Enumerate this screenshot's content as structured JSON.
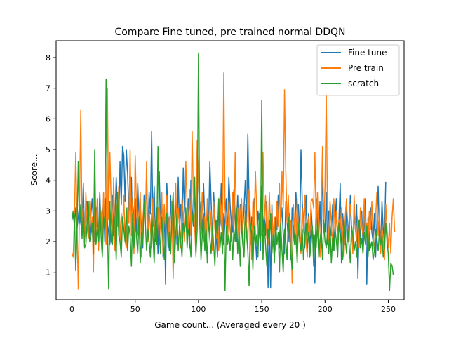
{
  "chart_data": {
    "type": "line",
    "title": "Compare Fine tuned, pre trained normal DDQN",
    "xlabel": "Game count... (Averaged every 20 )",
    "ylabel": "Score...",
    "xlim": [
      -12.5,
      262.5
    ],
    "ylim": [
      0.1,
      8.55
    ],
    "xticks": [
      0,
      50,
      100,
      150,
      200,
      250
    ],
    "yticks": [
      1,
      2,
      3,
      4,
      5,
      6,
      7,
      8
    ],
    "grid": false,
    "legend_position": "top-right",
    "series": [
      {
        "name": "Fine tune",
        "color": "#1f77b4",
        "values": [
          2.7,
          2.9,
          2.5,
          3.1,
          2.4,
          2.8,
          3.2,
          2.6,
          2.3,
          3.9,
          2.0,
          2.7,
          3.3,
          2.4,
          2.1,
          2.9,
          3.4,
          2.6,
          2.0,
          3.1,
          2.5,
          2.2,
          3.6,
          2.4,
          2.9,
          3.2,
          2.0,
          3.4,
          2.6,
          2.3,
          1.9,
          2.8,
          3.5,
          2.2,
          2.7,
          4.1,
          3.0,
          2.4,
          4.6,
          3.2,
          5.1,
          4.8,
          3.3,
          5.0,
          4.2,
          2.9,
          3.6,
          4.1,
          2.2,
          3.0,
          3.4,
          2.1,
          3.9,
          2.8,
          3.2,
          2.4,
          1.8,
          3.5,
          2.7,
          4.2,
          2.1,
          3.6,
          2.9,
          5.6,
          2.5,
          3.8,
          2.0,
          3.1,
          1.6,
          4.3,
          2.6,
          3.4,
          1.5,
          3.2,
          0.6,
          3.9,
          2.8,
          1.7,
          3.5,
          2.4,
          3.1,
          2.2,
          3.6,
          1.9,
          4.1,
          2.5,
          3.2,
          2.1,
          4.4,
          3.0,
          2.6,
          2.2,
          3.4,
          1.8,
          4.0,
          3.1,
          2.5,
          3.7,
          2.3,
          5.0,
          4.1,
          2.8,
          3.3,
          2.1,
          3.9,
          2.7,
          1.6,
          3.1,
          2.4,
          4.6,
          3.3,
          2.0,
          3.6,
          2.8,
          2.2,
          1.5,
          3.2,
          2.5,
          3.9,
          2.3,
          1.9,
          2.7,
          3.4,
          2.1,
          4.1,
          3.2,
          2.6,
          2.3,
          3.7,
          2.8,
          2.0,
          3.5,
          1.8,
          3.2,
          2.9,
          2.4,
          3.1,
          4.0,
          2.6,
          5.5,
          3.3,
          1.9,
          2.8,
          2.4,
          3.4,
          2.1,
          1.4,
          3.0,
          2.6,
          1.7,
          3.8,
          2.3,
          2.9,
          2.2,
          3.3,
          0.5,
          2.7,
          0.5,
          3.2,
          2.0,
          1.5,
          2.8,
          2.4,
          3.5,
          1.8,
          2.6,
          3.1,
          2.2,
          1.6,
          3.3,
          2.7,
          2.0,
          2.9,
          1.4,
          3.1,
          2.5,
          1.9,
          3.6,
          2.8,
          3.2,
          2.1,
          5.0,
          3.3,
          2.6,
          1.8,
          3.5,
          2.2,
          2.9,
          1.6,
          3.1,
          2.4,
          2.0,
          0.65,
          3.4,
          2.6,
          2.1,
          3.3,
          1.8,
          4.4,
          2.7,
          2.3,
          3.6,
          1.9,
          3.0,
          2.5,
          2.2,
          3.2,
          1.7,
          2.8,
          3.4,
          2.0,
          2.7,
          3.9,
          1.3,
          2.9,
          2.3,
          1.9,
          3.1,
          2.6,
          2.0,
          3.5,
          2.2,
          1.8,
          2.9,
          2.4,
          3.2,
          0.8,
          2.7,
          2.1,
          3.0,
          1.9,
          2.5,
          3.4,
          0.6,
          2.8,
          1.7,
          3.1,
          2.3,
          2.0,
          2.9,
          1.5,
          2.6,
          3.8,
          2.2,
          1.8,
          3.3,
          2.4,
          2.0,
          3.95
        ]
      },
      {
        "name": "Pre train",
        "color": "#ff7f0e",
        "values": [
          1.6,
          1.5,
          2.8,
          4.9,
          2.6,
          0.45,
          3.2,
          6.3,
          2.4,
          3.1,
          2.0,
          3.6,
          2.5,
          2.1,
          3.3,
          2.4,
          2.8,
          1.0,
          3.9,
          2.2,
          3.4,
          1.7,
          2.6,
          3.0,
          2.1,
          3.6,
          2.4,
          1.9,
          7.0,
          2.7,
          4.9,
          3.3,
          2.1,
          4.1,
          1.7,
          3.2,
          2.5,
          3.8,
          2.0,
          2.9,
          2.4,
          3.5,
          2.0,
          1.8,
          3.1,
          2.6,
          5.0,
          2.2,
          3.4,
          1.6,
          4.8,
          3.1,
          2.2,
          2.9,
          3.6,
          1.5,
          2.7,
          3.3,
          2.3,
          4.6,
          2.0,
          3.0,
          2.5,
          1.8,
          3.4,
          2.2,
          2.8,
          2.4,
          3.1,
          1.9,
          2.7,
          3.6,
          1.6,
          3.2,
          2.4,
          3.5,
          2.1,
          2.8,
          1.6,
          3.3,
          0.8,
          2.6,
          3.9,
          2.2,
          3.1,
          2.5,
          1.8,
          3.4,
          2.9,
          2.0,
          4.6,
          3.2,
          2.4,
          3.7,
          2.2,
          5.6,
          3.3,
          2.5,
          1.5,
          5.3,
          4.0,
          3.1,
          2.4,
          3.6,
          2.0,
          2.8,
          1.9,
          3.4,
          2.6,
          2.2,
          3.0,
          1.7,
          3.3,
          2.4,
          2.1,
          2.8,
          1.7,
          3.5,
          2.6,
          2.2,
          7.5,
          3.1,
          2.5,
          1.9,
          3.3,
          2.4,
          2.0,
          3.6,
          2.2,
          4.9,
          2.6,
          3.1,
          1.8,
          2.9,
          3.4,
          2.2,
          1.6,
          3.2,
          2.5,
          2.0,
          3.7,
          2.8,
          1.4,
          3.3,
          2.5,
          4.3,
          3.0,
          1.8,
          2.6,
          3.4,
          2.2,
          4.9,
          2.7,
          3.5,
          2.1,
          1.9,
          3.6,
          2.4,
          3.0,
          2.0,
          2.8,
          1.7,
          3.3,
          2.5,
          3.9,
          2.2,
          4.3,
          3.1,
          6.95,
          4.3,
          2.6,
          3.5,
          2.0,
          2.7,
          0.65,
          3.2,
          2.4,
          1.9,
          3.4,
          2.2,
          2.6,
          1.6,
          3.1,
          2.3,
          3.5,
          2.0,
          1.5,
          2.8,
          2.2,
          3.3,
          3.4,
          3.1,
          4.9,
          2.5,
          3.6,
          2.2,
          1.5,
          2.9,
          5.1,
          2.4,
          3.8,
          6.8,
          2.7,
          2.0,
          3.3,
          2.6,
          1.8,
          3.4,
          2.2,
          3.0,
          1.9,
          2.7,
          2.4,
          3.1,
          2.2,
          1.5,
          2.8,
          3.4,
          2.0,
          2.5,
          3.2,
          2.6,
          1.6,
          3.5,
          2.4,
          2.0,
          2.8,
          1.8,
          3.1,
          2.6,
          2.2,
          3.4,
          2.0,
          2.6,
          1.9,
          3.0,
          2.4,
          3.3,
          2.1,
          1.7,
          2.8,
          3.6,
          2.2,
          3.0,
          1.6,
          2.5,
          2.0,
          1.4,
          3.2,
          2.4,
          1.8,
          2.6,
          1.6,
          2.8,
          3.4,
          2.3
        ]
      },
      {
        "name": "scratch",
        "color": "#2ca02c",
        "values": [
          2.7,
          3.0,
          2.9,
          1.05,
          2.4,
          4.6,
          2.6,
          3.2,
          2.1,
          3.0,
          1.8,
          1.9,
          2.6,
          3.3,
          2.0,
          2.2,
          2.6,
          1.6,
          5.0,
          1.9,
          2.4,
          2.0,
          3.3,
          2.2,
          1.5,
          2.8,
          2.4,
          7.3,
          2.7,
          0.45,
          3.3,
          2.0,
          1.9,
          2.9,
          2.6,
          1.4,
          3.6,
          2.2,
          2.0,
          1.5,
          2.8,
          2.4,
          2.0,
          3.1,
          1.7,
          2.5,
          2.2,
          1.2,
          2.9,
          1.8,
          2.6,
          2.2,
          1.6,
          2.8,
          1.3,
          2.3,
          1.9,
          3.3,
          2.6,
          1.7,
          2.4,
          2.0,
          1.5,
          2.9,
          2.2,
          1.3,
          2.7,
          1.9,
          5.1,
          2.4,
          1.6,
          2.8,
          2.1,
          1.4,
          2.5,
          2.9,
          1.8,
          2.3,
          1.6,
          2.8,
          3.6,
          1.3,
          2.2,
          2.9,
          1.7,
          2.5,
          2.0,
          1.5,
          2.6,
          2.3,
          3.1,
          1.8,
          2.4,
          2.1,
          1.5,
          2.9,
          2.6,
          4.1,
          1.6,
          2.4,
          8.15,
          2.6,
          1.4,
          2.2,
          2.9,
          1.7,
          2.4,
          1.3,
          2.8,
          2.1,
          1.6,
          2.5,
          1.9,
          1.2,
          2.7,
          2.2,
          3.4,
          1.8,
          2.3,
          1.6,
          2.9,
          0.4,
          2.5,
          1.9,
          2.2,
          1.7,
          2.6,
          1.4,
          2.4,
          2.0,
          3.1,
          1.6,
          2.3,
          1.2,
          2.7,
          1.9,
          1.5,
          3.0,
          2.2,
          1.7,
          0.55,
          2.6,
          2.3,
          1.1,
          2.5,
          1.8,
          2.2,
          1.5,
          2.9,
          2.0,
          6.6,
          1.4,
          2.6,
          1.9,
          1.2,
          2.4,
          2.0,
          2.9,
          1.6,
          2.2,
          1.3,
          2.7,
          1.9,
          2.3,
          1.0,
          2.6,
          1.7,
          1.0,
          2.4,
          2.0,
          1.4,
          2.8,
          2.2,
          1.6,
          1.1,
          2.5,
          1.9,
          2.2,
          1.3,
          2.6,
          2.0,
          1.7,
          2.4,
          1.4,
          2.1,
          2.6,
          1.8,
          2.3,
          1.5,
          1.9,
          2.5,
          1.2,
          2.2,
          1.8,
          2.6,
          1.5,
          2.0,
          2.4,
          1.4,
          2.7,
          2.0,
          1.8,
          2.3,
          1.6,
          2.5,
          1.3,
          2.1,
          1.7,
          2.4,
          2.0,
          1.5,
          2.6,
          2.2,
          1.8,
          1.4,
          2.7,
          2.1,
          1.6,
          2.4,
          1.9,
          1.3,
          2.5,
          2.2,
          1.7,
          2.0,
          1.5,
          2.4,
          2.7,
          1.8,
          2.1,
          1.6,
          2.3,
          1.9,
          2.5,
          1.5,
          2.2,
          1.8,
          2.0,
          1.4,
          1.7,
          2.4,
          2.1,
          1.7,
          2.3,
          1.9,
          2.2,
          1.5,
          1.8,
          2.6,
          2.0,
          1.6,
          0.4,
          1.3,
          1.2,
          0.9
        ]
      }
    ]
  }
}
